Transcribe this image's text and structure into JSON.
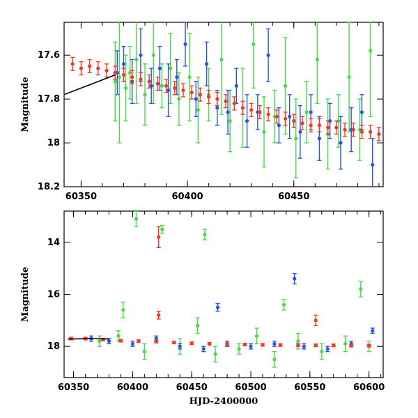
{
  "chart_data": [
    {
      "type": "scatter",
      "ylabel": "Magnitude",
      "xlabel": "",
      "xlim": [
        60342,
        60492
      ],
      "ylim": [
        18.2,
        17.45
      ],
      "y_inverted": true,
      "x_ticks": [
        "60350",
        "60400",
        "60450"
      ],
      "y_ticks": [
        "17.6",
        "17.8",
        "18",
        "18.2"
      ],
      "series": [
        {
          "color": "#44dd44",
          "points": [
            [
              60366,
              17.72,
              0.18
            ],
            [
              60368,
              17.7,
              0.3
            ],
            [
              60371,
              17.75,
              0.15
            ],
            [
              60373,
              17.68,
              0.12
            ],
            [
              60376,
              17.62,
              0.2
            ],
            [
              60380,
              17.78,
              0.14
            ],
            [
              60384,
              17.6,
              0.22
            ],
            [
              60388,
              17.74,
              0.1
            ],
            [
              60392,
              17.66,
              0.16
            ],
            [
              60396,
              17.8,
              0.12
            ],
            [
              60401,
              17.7,
              0.2
            ],
            [
              60405,
              17.85,
              0.15
            ],
            [
              60410,
              17.78,
              0.12
            ],
            [
              60416,
              17.62,
              0.25
            ],
            [
              60420,
              17.9,
              0.14
            ],
            [
              60426,
              17.84,
              0.18
            ],
            [
              60431,
              17.55,
              0.2
            ],
            [
              60436,
              17.95,
              0.16
            ],
            [
              60441,
              17.88,
              0.12
            ],
            [
              60446,
              17.74,
              0.22
            ],
            [
              60451,
              17.98,
              0.18
            ],
            [
              60456,
              17.86,
              0.14
            ],
            [
              60461,
              17.62,
              0.2
            ],
            [
              60466,
              17.96,
              0.16
            ],
            [
              60471,
              17.9,
              0.12
            ],
            [
              60476,
              17.7,
              0.25
            ],
            [
              60481,
              17.94,
              0.14
            ],
            [
              60486,
              17.58,
              0.3
            ]
          ]
        },
        {
          "color": "#2255ee",
          "points": [
            [
              60367,
              17.68,
              0.1
            ],
            [
              60370,
              17.64,
              0.08
            ],
            [
              60374,
              17.72,
              0.1
            ],
            [
              60378,
              17.6,
              0.12
            ],
            [
              60383,
              17.74,
              0.08
            ],
            [
              60387,
              17.66,
              0.1
            ],
            [
              60391,
              17.76,
              0.12
            ],
            [
              60395,
              17.7,
              0.08
            ],
            [
              60399,
              17.55,
              0.1
            ],
            [
              60404,
              17.8,
              0.08
            ],
            [
              60409,
              17.64,
              0.1
            ],
            [
              60414,
              17.84,
              0.08
            ],
            [
              60419,
              17.86,
              0.1
            ],
            [
              60423,
              17.74,
              0.08
            ],
            [
              60428,
              17.9,
              0.12
            ],
            [
              60433,
              17.86,
              0.08
            ],
            [
              60438,
              17.6,
              0.12
            ],
            [
              60443,
              17.92,
              0.08
            ],
            [
              60448,
              17.88,
              0.1
            ],
            [
              60453,
              17.95,
              0.12
            ],
            [
              60458,
              17.86,
              0.08
            ],
            [
              60462,
              17.98,
              0.1
            ],
            [
              60467,
              17.9,
              0.08
            ],
            [
              60472,
              18.0,
              0.12
            ],
            [
              60477,
              17.94,
              0.1
            ],
            [
              60482,
              17.86,
              0.08
            ],
            [
              60487,
              18.1,
              0.12
            ]
          ]
        },
        {
          "color": "#ff3322",
          "points": [
            [
              60346,
              17.64,
              0.03
            ],
            [
              60350,
              17.66,
              0.03
            ],
            [
              60354,
              17.65,
              0.03
            ],
            [
              60358,
              17.66,
              0.03
            ],
            [
              60362,
              17.67,
              0.03
            ],
            [
              60366,
              17.68,
              0.03
            ],
            [
              60370,
              17.69,
              0.03
            ],
            [
              60374,
              17.7,
              0.03
            ],
            [
              60378,
              17.71,
              0.03
            ],
            [
              60382,
              17.72,
              0.03
            ],
            [
              60386,
              17.73,
              0.03
            ],
            [
              60390,
              17.74,
              0.03
            ],
            [
              60394,
              17.75,
              0.03
            ],
            [
              60398,
              17.76,
              0.03
            ],
            [
              60402,
              17.77,
              0.03
            ],
            [
              60406,
              17.78,
              0.03
            ],
            [
              60410,
              17.79,
              0.03
            ],
            [
              60414,
              17.8,
              0.03
            ],
            [
              60418,
              17.81,
              0.03
            ],
            [
              60422,
              17.82,
              0.03
            ],
            [
              60426,
              17.84,
              0.03
            ],
            [
              60430,
              17.85,
              0.03
            ],
            [
              60434,
              17.86,
              0.03
            ],
            [
              60438,
              17.87,
              0.03
            ],
            [
              60442,
              17.88,
              0.03
            ],
            [
              60446,
              17.89,
              0.03
            ],
            [
              60450,
              17.9,
              0.03
            ],
            [
              60454,
              17.91,
              0.03
            ],
            [
              60458,
              17.92,
              0.03
            ],
            [
              60462,
              17.92,
              0.03
            ],
            [
              60466,
              17.93,
              0.03
            ],
            [
              60470,
              17.93,
              0.03
            ],
            [
              60474,
              17.94,
              0.03
            ],
            [
              60478,
              17.94,
              0.03
            ],
            [
              60482,
              17.95,
              0.03
            ],
            [
              60486,
              17.95,
              0.03
            ],
            [
              60490,
              17.96,
              0.03
            ]
          ]
        }
      ],
      "model_curve": [
        [
          60342,
          17.78
        ],
        [
          60350,
          17.75
        ],
        [
          60358,
          17.72
        ],
        [
          60366,
          17.69
        ]
      ]
    },
    {
      "type": "scatter",
      "xlabel": "HJD-2400000",
      "ylabel": "Magnitude",
      "xlim": [
        60342,
        60612
      ],
      "ylim": [
        19.2,
        12.8
      ],
      "y_inverted": true,
      "x_ticks": [
        "60350",
        "60400",
        "60450",
        "60500",
        "60550",
        "60600"
      ],
      "y_ticks": [
        "14",
        "16",
        "18"
      ],
      "series": [
        {
          "color": "#44dd44",
          "points": [
            [
              60392,
              16.6,
              0.3
            ],
            [
              60403,
              13.1,
              0.3
            ],
            [
              60425,
              13.5,
              0.15
            ],
            [
              60461,
              13.7,
              0.2
            ],
            [
              60528,
              16.4,
              0.2
            ],
            [
              60593,
              15.8,
              0.3
            ],
            [
              60372,
              17.8,
              0.2
            ],
            [
              60388,
              17.6,
              0.2
            ],
            [
              60410,
              18.2,
              0.3
            ],
            [
              60440,
              18.0,
              0.3
            ],
            [
              60455,
              17.2,
              0.3
            ],
            [
              60470,
              18.3,
              0.3
            ],
            [
              60490,
              18.1,
              0.2
            ],
            [
              60505,
              17.6,
              0.3
            ],
            [
              60520,
              18.5,
              0.3
            ],
            [
              60540,
              17.8,
              0.3
            ],
            [
              60560,
              18.2,
              0.3
            ],
            [
              60580,
              17.9,
              0.3
            ],
            [
              60600,
              18.0,
              0.2
            ]
          ]
        },
        {
          "color": "#2255ee",
          "points": [
            [
              60472,
              16.5,
              0.15
            ],
            [
              60537,
              15.4,
              0.2
            ],
            [
              60365,
              17.7,
              0.1
            ],
            [
              60380,
              17.8,
              0.1
            ],
            [
              60400,
              17.9,
              0.1
            ],
            [
              60420,
              17.7,
              0.1
            ],
            [
              60440,
              18.0,
              0.1
            ],
            [
              60460,
              18.1,
              0.1
            ],
            [
              60480,
              17.9,
              0.1
            ],
            [
              60500,
              18.0,
              0.1
            ],
            [
              60520,
              17.9,
              0.1
            ],
            [
              60545,
              18.0,
              0.1
            ],
            [
              60565,
              18.1,
              0.1
            ],
            [
              60585,
              17.9,
              0.1
            ],
            [
              60603,
              17.4,
              0.1
            ]
          ]
        },
        {
          "color": "#ff3322",
          "points": [
            [
              60422,
              13.8,
              0.4
            ],
            [
              60422,
              16.8,
              0.15
            ],
            [
              60555,
              17.0,
              0.2
            ],
            [
              60348,
              17.7,
              0.05
            ],
            [
              60360,
              17.7,
              0.05
            ],
            [
              60375,
              17.74,
              0.05
            ],
            [
              60390,
              17.78,
              0.05
            ],
            [
              60405,
              17.8,
              0.05
            ],
            [
              60420,
              17.82,
              0.05
            ],
            [
              60435,
              17.85,
              0.05
            ],
            [
              60450,
              17.88,
              0.05
            ],
            [
              60465,
              17.9,
              0.05
            ],
            [
              60480,
              17.92,
              0.05
            ],
            [
              60495,
              17.93,
              0.05
            ],
            [
              60510,
              17.94,
              0.05
            ],
            [
              60525,
              17.95,
              0.05
            ],
            [
              60540,
              17.95,
              0.05
            ],
            [
              60555,
              17.96,
              0.05
            ],
            [
              60570,
              17.96,
              0.05
            ],
            [
              60585,
              17.97,
              0.05
            ],
            [
              60600,
              17.97,
              0.05
            ]
          ]
        }
      ],
      "model_curve": [
        [
          60345,
          17.72
        ],
        [
          60365,
          17.7
        ],
        [
          60380,
          17.72
        ]
      ]
    }
  ]
}
